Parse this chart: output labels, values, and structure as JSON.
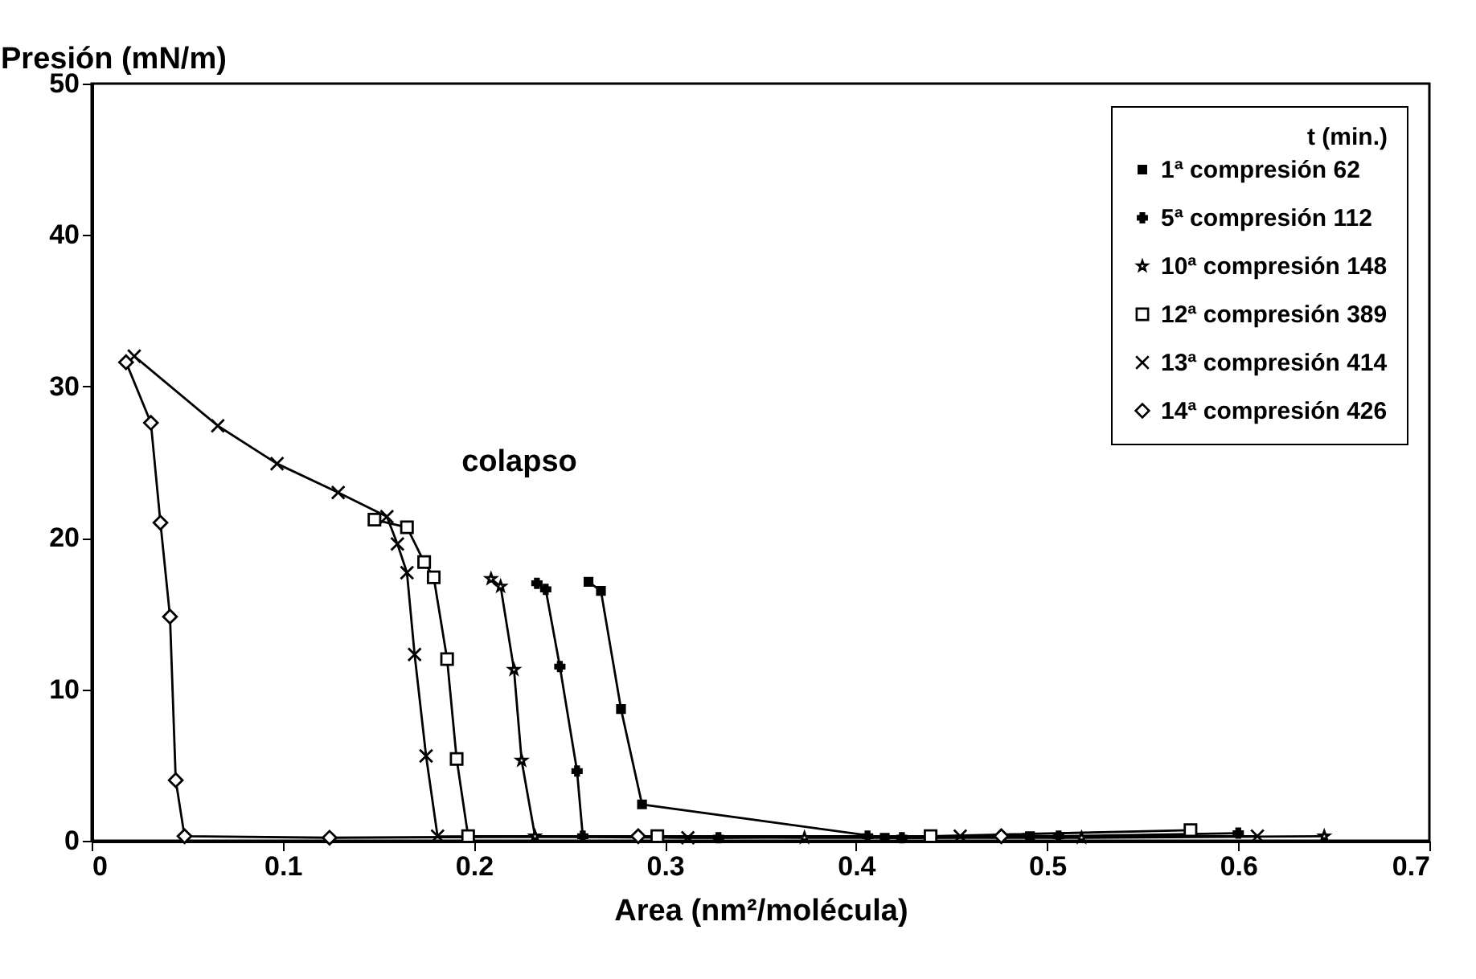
{
  "chart_data": {
    "type": "line",
    "xlabel": "Area (nm²/molécula)",
    "ylabel": "Presión (mN/m)",
    "legend_title": "t (min.)",
    "legend": "top right",
    "grid": false,
    "xlim": [
      0,
      0.7
    ],
    "xticks": [
      0,
      0.1,
      0.2,
      0.3,
      0.4,
      0.5,
      0.6,
      0.7
    ],
    "ylim": [
      0,
      50
    ],
    "yticks": [
      0,
      10,
      20,
      30,
      40,
      50
    ],
    "annotations": [
      "colapso"
    ],
    "series": [
      {
        "name": "1ª compresión 62",
        "color": "#000000",
        "marker": "square",
        "x": [
          0.26,
          0.2665,
          0.277,
          0.288,
          0.415,
          0.491
        ],
        "values": [
          17.1,
          16.5,
          8.7,
          2.4,
          0.2,
          0.3
        ]
      },
      {
        "name": "5ª compresión 112",
        "color": "#000000",
        "marker": "cross",
        "x": [
          0.233,
          0.2376,
          0.245,
          0.254,
          0.257,
          0.328,
          0.406,
          0.424,
          0.506,
          0.6
        ],
        "values": [
          17,
          16.6,
          11.5,
          4.6,
          0.3,
          0.2,
          0.3,
          0.2,
          0.3,
          0.5
        ]
      },
      {
        "name": "10ª compresión 148",
        "color": "#000000",
        "marker": "star",
        "x": [
          0.209,
          0.214,
          0.221,
          0.225,
          0.232,
          0.373,
          0.518,
          0.645
        ],
        "values": [
          17.3,
          16.8,
          11.3,
          5.3,
          0.3,
          0.2,
          0.2,
          0.3
        ]
      },
      {
        "name": "12ª compresión 389",
        "color": "#000000",
        "marker": "square-open",
        "x": [
          0.148,
          0.165,
          0.174,
          0.179,
          0.186,
          0.191,
          0.197,
          0.296,
          0.439,
          0.575
        ],
        "values": [
          21.2,
          20.7,
          18.4,
          17.4,
          12,
          5.4,
          0.3,
          0.3,
          0.3,
          0.7
        ]
      },
      {
        "name": "13ª compresión 414",
        "color": "#000000",
        "marker": "x",
        "x": [
          0.0223,
          0.066,
          0.097,
          0.129,
          0.1545,
          0.16,
          0.165,
          0.169,
          0.175,
          0.181,
          0.312,
          0.4545,
          0.61
        ],
        "values": [
          32,
          27.4,
          24.9,
          23,
          21.4,
          19.6,
          17.7,
          12.3,
          5.6,
          0.3,
          0.2,
          0.3,
          0.3
        ]
      },
      {
        "name": "14ª compresión 426",
        "color": "#000000",
        "marker": "diamond",
        "x": [
          0.018,
          0.031,
          0.036,
          0.041,
          0.044,
          0.0486,
          0.1245,
          0.286,
          0.476
        ],
        "values": [
          31.6,
          27.6,
          21,
          14.8,
          4,
          0.3,
          0.2,
          0.3,
          0.3
        ]
      }
    ]
  }
}
